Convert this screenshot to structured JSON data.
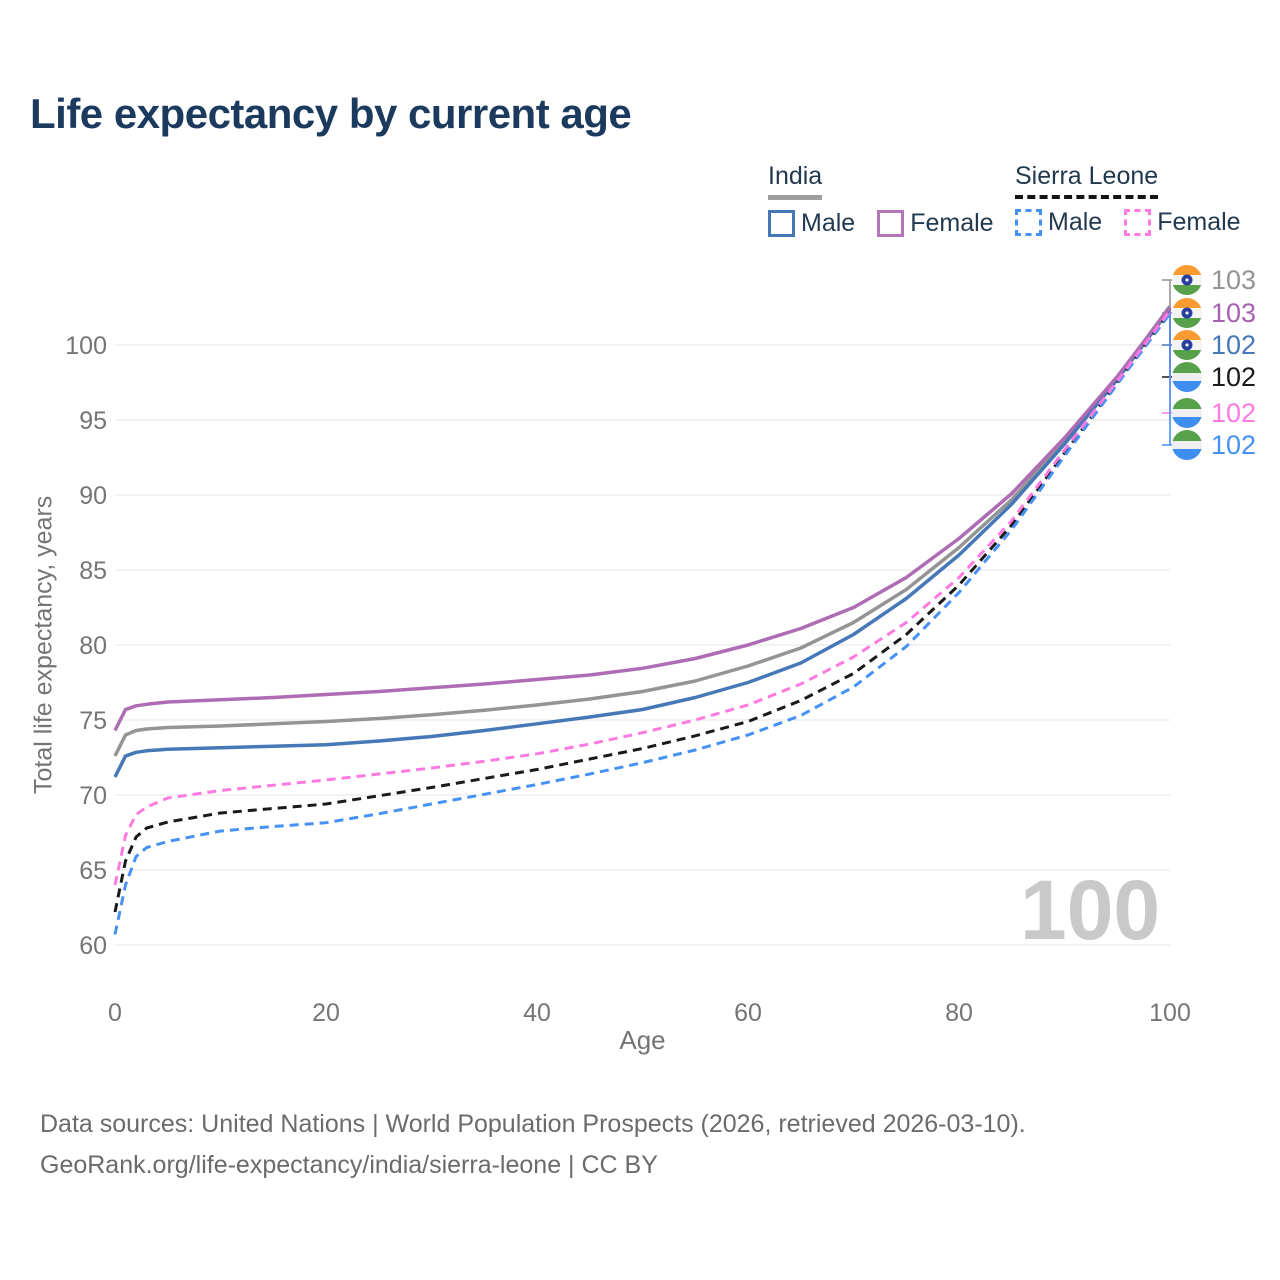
{
  "title": "Life expectancy by current age",
  "legend": {
    "groups": [
      {
        "label": "India",
        "line_style": "solid",
        "line_color": "#9e9e9e",
        "items": [
          {
            "label": "Male",
            "color": "#4678b8",
            "dashed": false
          },
          {
            "label": "Female",
            "color": "#b176b6",
            "dashed": false
          }
        ]
      },
      {
        "label": "Sierra Leone",
        "line_style": "dashed",
        "line_color": "#141414",
        "items": [
          {
            "label": "Male",
            "color": "#4691f5",
            "dashed": true
          },
          {
            "label": "Female",
            "color": "#ff7ae0",
            "dashed": true
          }
        ]
      }
    ]
  },
  "chart_data": {
    "type": "line",
    "title": "Life expectancy by current age",
    "xlabel": "Age",
    "ylabel": "Total life expectancy, years",
    "xlim": [
      0,
      100
    ],
    "ylim": [
      60,
      104
    ],
    "xticks": [
      0,
      20,
      40,
      60,
      80,
      100
    ],
    "yticks": [
      60,
      65,
      70,
      75,
      80,
      85,
      90,
      95,
      100
    ],
    "grid": "horizontal",
    "legend_position": "top-right",
    "x": [
      0,
      1,
      2,
      3,
      5,
      10,
      15,
      20,
      25,
      30,
      35,
      40,
      45,
      50,
      55,
      60,
      65,
      70,
      75,
      80,
      85,
      90,
      95,
      100
    ],
    "series": [
      {
        "name": "India Total",
        "country": "India",
        "sex": "Total",
        "color": "#949494",
        "dashed": false,
        "end_label": "103",
        "values": [
          72.6,
          74.0,
          74.3,
          74.4,
          74.5,
          74.6,
          74.75,
          74.9,
          75.1,
          75.35,
          75.65,
          76.0,
          76.4,
          76.9,
          77.6,
          78.6,
          79.8,
          81.5,
          83.7,
          86.5,
          89.7,
          93.6,
          97.8,
          102.6
        ]
      },
      {
        "name": "India Female",
        "country": "India",
        "sex": "Female",
        "color": "#ad6cb3",
        "dashed": false,
        "end_label": "103",
        "values": [
          74.3,
          75.7,
          75.95,
          76.05,
          76.2,
          76.35,
          76.5,
          76.7,
          76.9,
          77.15,
          77.4,
          77.7,
          78.0,
          78.45,
          79.1,
          80.0,
          81.1,
          82.5,
          84.5,
          87.1,
          90.1,
          93.8,
          97.9,
          102.5
        ]
      },
      {
        "name": "India Male",
        "country": "India",
        "sex": "Male",
        "color": "#4678b8",
        "dashed": false,
        "end_label": "102",
        "values": [
          71.2,
          72.6,
          72.85,
          72.95,
          73.05,
          73.15,
          73.25,
          73.35,
          73.6,
          73.9,
          74.3,
          74.75,
          75.2,
          75.7,
          76.5,
          77.5,
          78.8,
          80.7,
          83.1,
          86.0,
          89.4,
          93.4,
          97.7,
          102.4
        ]
      },
      {
        "name": "Sierra Leone Total",
        "country": "Sierra Leone",
        "sex": "Total",
        "color": "#1a1a1a",
        "dashed": true,
        "end_label": "102",
        "values": [
          62.2,
          65.6,
          67.2,
          67.8,
          68.2,
          68.8,
          69.1,
          69.4,
          69.95,
          70.5,
          71.1,
          71.7,
          72.4,
          73.1,
          73.95,
          74.9,
          76.3,
          78.1,
          80.7,
          84.0,
          88.0,
          92.8,
          97.5,
          102.2
        ]
      },
      {
        "name": "Sierra Leone Female",
        "country": "Sierra Leone",
        "sex": "Female",
        "color": "#ff7ae0",
        "dashed": true,
        "end_label": "102",
        "values": [
          64.0,
          67.3,
          68.7,
          69.2,
          69.8,
          70.3,
          70.65,
          71.0,
          71.4,
          71.8,
          72.25,
          72.75,
          73.4,
          74.15,
          75.0,
          76.0,
          77.4,
          79.2,
          81.5,
          84.5,
          88.3,
          93.0,
          97.6,
          102.3
        ]
      },
      {
        "name": "Sierra Leone Male",
        "country": "Sierra Leone",
        "sex": "Male",
        "color": "#4691f5",
        "dashed": true,
        "end_label": "102",
        "values": [
          60.7,
          64.0,
          65.9,
          66.5,
          66.9,
          67.6,
          67.9,
          68.15,
          68.75,
          69.4,
          70.05,
          70.7,
          71.4,
          72.15,
          73.0,
          74.0,
          75.3,
          77.2,
          79.9,
          83.5,
          87.7,
          92.6,
          97.4,
          102.1
        ]
      }
    ]
  },
  "end_labels": [
    {
      "flag": "india",
      "value": "103",
      "color": "#949494"
    },
    {
      "flag": "india",
      "value": "103",
      "color": "#a661b0"
    },
    {
      "flag": "india",
      "value": "102",
      "color": "#4678b8"
    },
    {
      "flag": "sierra-leone",
      "value": "102",
      "color": "#1a1a1a"
    },
    {
      "flag": "sierra-leone",
      "value": "102",
      "color": "#ff7ae0"
    },
    {
      "flag": "sierra-leone",
      "value": "102",
      "color": "#4691f5"
    }
  ],
  "watermark": "100",
  "footer": {
    "line1": "Data sources: United Nations | World Population Prospects (2026, retrieved 2026-03-10).",
    "line2": "GeoRank.org/life-expectancy/india/sierra-leone | CC BY"
  }
}
